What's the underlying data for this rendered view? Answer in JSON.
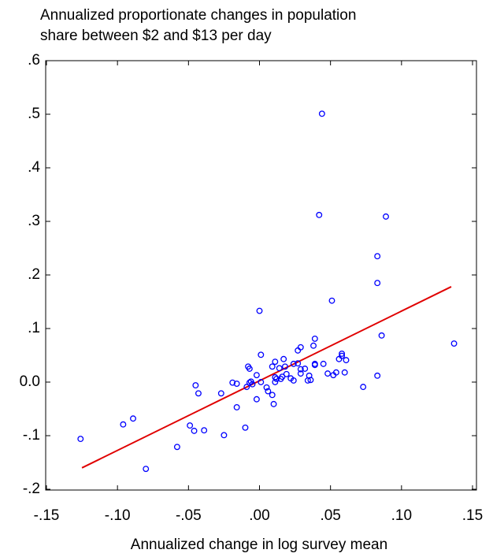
{
  "chart_data": {
    "type": "scatter",
    "title": [
      "Annualized proportionate changes in population",
      "share between $2 and $13 per day"
    ],
    "x_label": "Annualized change in log survey mean",
    "xlim": [
      -0.15,
      0.15
    ],
    "ylim": [
      -0.2,
      0.6
    ],
    "xticks": [
      {
        "value": -0.15,
        "label": "-.15"
      },
      {
        "value": -0.1,
        "label": "-.10"
      },
      {
        "value": -0.05,
        "label": "-.05"
      },
      {
        "value": 0,
        "label": ".00"
      },
      {
        "value": 0.05,
        "label": ".05"
      },
      {
        "value": 0.1,
        "label": ".10"
      },
      {
        "value": 0.15,
        "label": ".15"
      }
    ],
    "yticks": [
      {
        "value": -0.2,
        "label": "-.2"
      },
      {
        "value": -0.1,
        "label": "-.1"
      },
      {
        "value": 0,
        "label": "0.0"
      },
      {
        "value": 0.1,
        "label": ".1"
      },
      {
        "value": 0.2,
        "label": ".2"
      },
      {
        "value": 0.3,
        "label": ".3"
      },
      {
        "value": 0.4,
        "label": ".4"
      },
      {
        "value": 0.5,
        "label": ".5"
      },
      {
        "value": 0.6,
        "label": ".6"
      }
    ],
    "points": {
      "color": "#0000ff",
      "x": [
        -0.126,
        -0.089,
        -0.096,
        -0.08,
        -0.058,
        -0.049,
        -0.046,
        -0.045,
        -0.043,
        -0.039,
        -0.027,
        -0.025,
        -0.019,
        -0.016,
        -0.016,
        -0.01,
        -0.009,
        -0.008,
        -0.007,
        -0.007,
        -0.006,
        -0.005,
        -0.002,
        -0.002,
        0.0,
        0.001,
        0.001,
        0.005,
        0.006,
        0.009,
        0.009,
        0.01,
        0.011,
        0.011,
        0.011,
        0.012,
        0.014,
        0.015,
        0.016,
        0.017,
        0.018,
        0.019,
        0.022,
        0.024,
        0.024,
        0.027,
        0.027,
        0.029,
        0.029,
        0.029,
        0.032,
        0.034,
        0.035,
        0.036,
        0.038,
        0.039,
        0.039,
        0.039,
        0.042,
        0.044,
        0.045,
        0.048,
        0.052,
        0.051,
        0.054,
        0.056,
        0.058,
        0.058,
        0.06,
        0.061,
        0.073,
        0.083,
        0.083,
        0.083,
        0.086,
        0.089,
        0.137
      ],
      "y": [
        -0.106,
        -0.068,
        -0.079,
        -0.162,
        -0.121,
        -0.081,
        -0.091,
        -0.006,
        -0.021,
        -0.09,
        -0.021,
        -0.099,
        -0.001,
        -0.047,
        -0.003,
        -0.085,
        -0.009,
        0.029,
        0.025,
        -0.001,
        0.001,
        -0.004,
        -0.032,
        0.013,
        0.133,
        0.051,
        0.0,
        -0.01,
        -0.017,
        0.029,
        -0.024,
        -0.041,
        0.0,
        0.038,
        0.009,
        0.006,
        0.026,
        0.006,
        0.01,
        0.043,
        0.029,
        0.015,
        0.007,
        0.034,
        0.003,
        0.035,
        0.059,
        0.065,
        0.024,
        0.016,
        0.025,
        0.003,
        0.012,
        0.004,
        0.068,
        0.081,
        0.034,
        0.032,
        0.312,
        0.501,
        0.034,
        0.016,
        0.013,
        0.152,
        0.018,
        0.043,
        0.053,
        0.049,
        0.018,
        0.041,
        -0.009,
        0.235,
        0.185,
        0.012,
        0.087,
        0.309,
        0.072
      ]
    },
    "fit_line": {
      "color": "#e00000",
      "x": [
        -0.125,
        0.135
      ],
      "y": [
        -0.16,
        0.178
      ]
    }
  }
}
